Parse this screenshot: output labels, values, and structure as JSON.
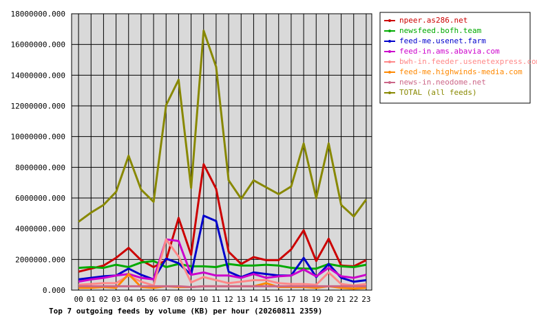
{
  "chart_data": {
    "type": "line",
    "title": "Top 7 outgoing feeds by volume (KB) per hour (20260811 2359)",
    "xlabel": "",
    "ylabel": "",
    "ylim": [
      0,
      18000000
    ],
    "y_ticks": [
      "0.000",
      "2000000.000",
      "4000000.000",
      "6000000.000",
      "8000000.000",
      "10000000.000",
      "12000000.000",
      "14000000.000",
      "16000000.000",
      "18000000.000"
    ],
    "x": [
      "00",
      "01",
      "02",
      "03",
      "04",
      "05",
      "06",
      "07",
      "08",
      "09",
      "10",
      "11",
      "12",
      "13",
      "14",
      "15",
      "16",
      "17",
      "18",
      "19",
      "20",
      "21",
      "22",
      "23"
    ],
    "grid": true,
    "legend_position": "top-right",
    "series": [
      {
        "name": "npeer.as286.net",
        "color": "#cc0000",
        "values": [
          1200000,
          1400000,
          1600000,
          2100000,
          2750000,
          1950000,
          1500000,
          1950000,
          4700000,
          2300000,
          8200000,
          6600000,
          2500000,
          1700000,
          2150000,
          1950000,
          1950000,
          2650000,
          3900000,
          1900000,
          3350000,
          1600000,
          1550000,
          1950000
        ]
      },
      {
        "name": "newsfeed.bofh.team",
        "color": "#00aa00",
        "values": [
          1450000,
          1500000,
          1450000,
          1650000,
          1500000,
          1800000,
          1900000,
          1500000,
          1700000,
          1550000,
          1550000,
          1500000,
          1700000,
          1600000,
          1600000,
          1650000,
          1600000,
          1450000,
          1400000,
          1400000,
          1700000,
          1550000,
          1500000,
          1650000
        ]
      },
      {
        "name": "feed-me.usenet.farm",
        "color": "#0000cc",
        "values": [
          700000,
          800000,
          900000,
          950000,
          1400000,
          1000000,
          700000,
          2050000,
          1750000,
          1000000,
          4850000,
          4500000,
          1200000,
          850000,
          1150000,
          1050000,
          950000,
          950000,
          2100000,
          850000,
          1700000,
          800000,
          550000,
          650000
        ]
      },
      {
        "name": "feed-in.ams.abavia.com",
        "color": "#cc00cc",
        "values": [
          550000,
          700000,
          800000,
          950000,
          1050000,
          800000,
          700000,
          3300000,
          3200000,
          1000000,
          1150000,
          950000,
          950000,
          800000,
          1050000,
          800000,
          900000,
          950000,
          1350000,
          900000,
          1450000,
          900000,
          800000,
          1000000
        ]
      },
      {
        "name": "bwh-in.feeder.usenetexpress.com",
        "color": "#ff8888",
        "values": [
          350000,
          400000,
          450000,
          450000,
          950000,
          550000,
          300000,
          3300000,
          2200000,
          500000,
          850000,
          650000,
          450000,
          550000,
          650000,
          650000,
          450000,
          400000,
          400000,
          350000,
          1150000,
          400000,
          300000,
          400000
        ]
      },
      {
        "name": "feed-me.highwinds-media.com",
        "color": "#ff8800",
        "values": [
          150000,
          150000,
          200000,
          150000,
          1050000,
          200000,
          150000,
          250000,
          200000,
          200000,
          250000,
          250000,
          250000,
          250000,
          250000,
          450000,
          200000,
          200000,
          200000,
          150000,
          250000,
          150000,
          100000,
          150000
        ]
      },
      {
        "name": "news-in.neodome.net",
        "color": "#cc6688",
        "values": [
          250000,
          250000,
          250000,
          250000,
          250000,
          250000,
          250000,
          250000,
          250000,
          200000,
          250000,
          250000,
          250000,
          250000,
          250000,
          250000,
          250000,
          250000,
          250000,
          250000,
          250000,
          250000,
          250000,
          250000
        ]
      },
      {
        "name": "TOTAL (all feeds)",
        "color": "#888800",
        "values": [
          4450000,
          5050000,
          5550000,
          6400000,
          8750000,
          6550000,
          5750000,
          12050000,
          13700000,
          6650000,
          16900000,
          14550000,
          7150000,
          5950000,
          7150000,
          6700000,
          6250000,
          6750000,
          9550000,
          6000000,
          9550000,
          5550000,
          4800000,
          5900000
        ]
      }
    ]
  }
}
